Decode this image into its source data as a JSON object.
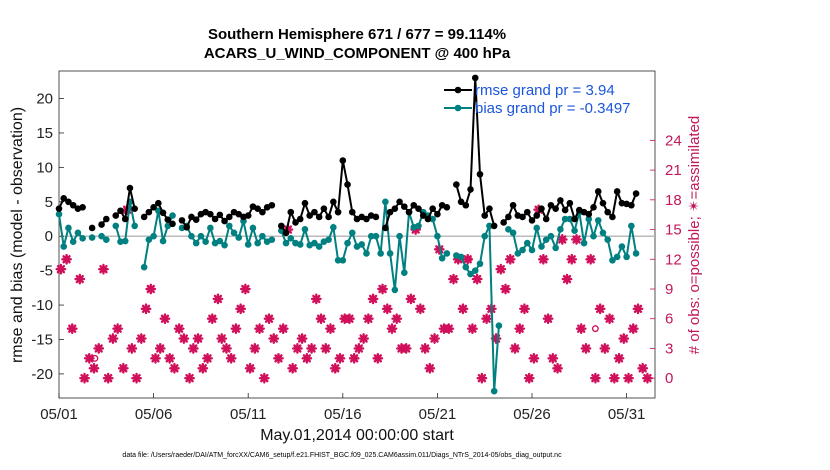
{
  "chart_data": {
    "type": "line",
    "title_line1": "Southern Hemisphere 671 / 677 = 99.114%",
    "title_line2": "ACARS_U_WIND_COMPONENT @ 400 hPa",
    "xlabel": "May.01,2014 00:00:00 start",
    "ylabel": "rmse and bias (model - observation)",
    "y2label": "# of obs: o=possible; ✴=assimilated",
    "footnote": "data file: /Users/raeder/DAI/ATM_forcXX/CAM6_setup/f.e21.FHIST_BGC.f09_025.CAM6assim.011/Diags_NTrS_2014-05/obs_diag_output.nc",
    "x_tick_labels": [
      "05/01",
      "05/06",
      "05/11",
      "05/16",
      "05/21",
      "05/26",
      "05/31"
    ],
    "x_ticks_day": [
      1,
      6,
      11,
      16,
      21,
      26,
      31
    ],
    "xlim_day": [
      1,
      32.5
    ],
    "ylim": [
      -23.5,
      24
    ],
    "y_ticks": [
      -20,
      -15,
      -10,
      -5,
      0,
      5,
      10,
      15,
      20
    ],
    "y2lim": [
      -2,
      31
    ],
    "y2_ticks": [
      0,
      3,
      6,
      9,
      12,
      15,
      18,
      21,
      24
    ],
    "grid": false,
    "legend_position": "top-right",
    "colors": {
      "rmse": "#000000",
      "bias": "#008080",
      "obs": "#d0105a",
      "zero_line": "#bbbbbb"
    },
    "series": [
      {
        "name": "rmse grand pr = 3.94",
        "day": [
          1,
          1.25,
          1.5,
          1.75,
          2,
          2.25,
          2.5,
          2.75,
          3,
          3.25,
          3.5,
          3.75,
          4,
          4.25,
          4.5,
          4.75,
          5,
          5.25,
          5.5,
          5.75,
          6,
          6.25,
          6.5,
          6.75,
          7,
          7.25,
          7.5,
          7.75,
          8,
          8.25,
          8.5,
          8.75,
          9,
          9.25,
          9.5,
          9.75,
          10,
          10.25,
          10.5,
          10.75,
          11,
          11.25,
          11.5,
          11.75,
          12,
          12.25,
          12.5,
          12.75,
          13,
          13.25,
          13.5,
          13.75,
          14,
          14.25,
          14.5,
          14.75,
          15,
          15.25,
          15.5,
          15.75,
          16,
          16.25,
          16.5,
          16.75,
          17,
          17.25,
          17.5,
          17.75,
          18,
          18.25,
          18.5,
          18.75,
          19,
          19.25,
          19.5,
          19.75,
          20,
          20.25,
          20.5,
          20.75,
          21,
          21.25,
          21.5,
          21.75,
          22,
          22.25,
          22.5,
          22.75,
          23,
          23.25,
          23.5,
          23.75,
          24,
          24.25,
          24.5,
          24.75,
          25,
          25.25,
          25.5,
          25.75,
          26,
          26.25,
          26.5,
          26.75,
          27,
          27.25,
          27.5,
          27.75,
          28,
          28.25,
          28.5,
          28.75,
          29,
          29.25,
          29.5,
          29.75,
          30,
          30.25,
          30.5,
          30.75,
          31,
          31.25,
          31.5,
          31.75,
          32,
          32.25
        ],
        "values": [
          4,
          5.5,
          5,
          4.5,
          4,
          4.2,
          null,
          1.2,
          null,
          1.7,
          2.5,
          null,
          3,
          3.7,
          2.5,
          7,
          4,
          null,
          2.8,
          3.5,
          4.2,
          4.8,
          3.4,
          2.4,
          1.8,
          null,
          2.3,
          1.3,
          2.8,
          2.4,
          3.2,
          3.5,
          3.2,
          2.5,
          3.1,
          2.2,
          2.8,
          3.5,
          3.2,
          2.8,
          3,
          4.3,
          4,
          3.5,
          4.2,
          4.5,
          null,
          1.5,
          0.5,
          3.5,
          2,
          2.5,
          4.8,
          3,
          3.5,
          2.8,
          4,
          2.8,
          5,
          3.5,
          11,
          7.5,
          3.5,
          2.5,
          2.8,
          2.5,
          3,
          2.8,
          null,
          1.2,
          3.5,
          4,
          5,
          4.3,
          3.5,
          4.5,
          4,
          3,
          2.5,
          4,
          3.2,
          4.5,
          4.2,
          null,
          7.5,
          5,
          4.5,
          6.8,
          23,
          9,
          3,
          4,
          1.5,
          null,
          2,
          2.8,
          4.5,
          3,
          2.8,
          3.5,
          2.3,
          3,
          4,
          2.5,
          4.5,
          4,
          5.2,
          3.8,
          4.8,
          2.5,
          3.8,
          3.5,
          3.2,
          4.2,
          6.5,
          4.8,
          3.5,
          2.8,
          6.5,
          4.8,
          4.7,
          4.5,
          6.2
        ]
      },
      {
        "name": "bias grand pr = -0.3497",
        "day": [
          1,
          1.25,
          1.5,
          1.75,
          2,
          2.25,
          2.5,
          2.75,
          3,
          3.25,
          3.5,
          3.75,
          4,
          4.25,
          4.5,
          4.75,
          5,
          5.25,
          5.5,
          5.75,
          6,
          6.25,
          6.5,
          6.75,
          7,
          7.25,
          7.5,
          7.75,
          8,
          8.25,
          8.5,
          8.75,
          9,
          9.25,
          9.5,
          9.75,
          10,
          10.25,
          10.5,
          10.75,
          11,
          11.25,
          11.5,
          11.75,
          12,
          12.25,
          12.5,
          12.75,
          13,
          13.25,
          13.5,
          13.75,
          14,
          14.25,
          14.5,
          14.75,
          15,
          15.25,
          15.5,
          15.75,
          16,
          16.25,
          16.5,
          16.75,
          17,
          17.25,
          17.5,
          17.75,
          18,
          18.25,
          18.5,
          18.75,
          19,
          19.25,
          19.5,
          19.75,
          20,
          20.25,
          20.5,
          20.75,
          21,
          21.25,
          21.5,
          21.75,
          22,
          22.25,
          22.5,
          22.75,
          23,
          23.25,
          23.5,
          23.75,
          24,
          24.25,
          24.5,
          24.75,
          25,
          25.25,
          25.5,
          25.75,
          26,
          26.25,
          26.5,
          26.75,
          27,
          27.25,
          27.5,
          27.75,
          28,
          28.25,
          28.5,
          28.75,
          29,
          29.25,
          29.5,
          29.75,
          30,
          30.25,
          30.5,
          30.75,
          31,
          31.25,
          31.5,
          31.75,
          32,
          32.25
        ],
        "values": [
          3.2,
          -1.5,
          1.2,
          -0.8,
          0.5,
          -0.3,
          null,
          -0.2,
          null,
          0,
          -0.5,
          null,
          1.5,
          -0.8,
          -0.7,
          5,
          1.5,
          null,
          -4.5,
          -0.5,
          0,
          3.7,
          -0.7,
          1.5,
          3,
          null,
          1.2,
          1.5,
          0,
          -1,
          0,
          -0.8,
          1.2,
          -1,
          -0.7,
          -1.3,
          1.5,
          0.5,
          -0.2,
          2.2,
          -1.2,
          1.2,
          -1,
          0,
          -0.8,
          -0.5,
          null,
          0.8,
          -1,
          -0.3,
          -1,
          -1.2,
          1,
          -1.3,
          -1,
          -1.5,
          -0.8,
          -0.5,
          1.3,
          -3.5,
          -3.5,
          -1,
          0.5,
          -1.5,
          -1.2,
          -2.5,
          0,
          0,
          -2.5,
          5,
          -2.5,
          -7.8,
          0,
          -5.3,
          3.5,
          1.3,
          1.5,
          3.5,
          3,
          2.5,
          0,
          -3.2,
          -2.5,
          null,
          -2.8,
          -3,
          -4.5,
          -5.5,
          -5,
          -4,
          0,
          1.5,
          -22.5,
          -13,
          null,
          1,
          0.5,
          -2.5,
          -2,
          -1,
          -2,
          1.2,
          -1.5,
          -0.5,
          0,
          -1.7,
          1,
          2.5,
          2.5,
          0.8,
          3.5,
          -1,
          2.5,
          0,
          2.3,
          0.5,
          -0.5,
          -3.5,
          -3,
          -1.5,
          -3,
          1.5,
          -2.5
        ]
      }
    ],
    "obs_assimilated": {
      "day": [
        1.1,
        1.4,
        1.7,
        2.1,
        2.35,
        2.6,
        2.85,
        3.1,
        3.35,
        3.6,
        3.85,
        4.1,
        4.4,
        4.6,
        4.85,
        5.1,
        5.35,
        5.6,
        5.85,
        6.1,
        6.35,
        6.6,
        6.85,
        7.1,
        7.35,
        7.6,
        7.9,
        8.1,
        8.35,
        8.6,
        8.85,
        9.1,
        9.4,
        9.6,
        9.85,
        10.1,
        10.35,
        10.6,
        10.85,
        11.1,
        11.35,
        11.6,
        11.85,
        12.1,
        12.35,
        12.6,
        12.85,
        13.1,
        13.35,
        13.6,
        13.85,
        14.1,
        14.35,
        14.6,
        14.85,
        15.1,
        15.35,
        15.6,
        15.85,
        16.1,
        16.35,
        16.6,
        16.85,
        17.1,
        17.35,
        17.6,
        17.85,
        18.1,
        18.35,
        18.6,
        18.85,
        19.1,
        19.35,
        19.6,
        19.85,
        20.1,
        20.35,
        20.6,
        20.85,
        21.1,
        21.35,
        21.6,
        21.85,
        22.1,
        22.35,
        22.6,
        22.85,
        23.1,
        23.35,
        23.6,
        23.85,
        24.1,
        24.35,
        24.6,
        24.85,
        25.1,
        25.35,
        25.6,
        25.85,
        26.1,
        26.35,
        26.6,
        26.85,
        27.1,
        27.35,
        27.6,
        27.85,
        28.1,
        28.35,
        28.6,
        28.85,
        29.1,
        29.35,
        29.6,
        29.85,
        30.1,
        30.35,
        30.6,
        30.85,
        31.1,
        31.35,
        31.6,
        31.85,
        32.1
      ],
      "values": [
        11,
        12,
        5,
        10,
        0,
        2,
        1,
        3,
        11,
        0,
        4,
        5,
        1,
        17,
        3,
        0,
        4,
        7,
        9,
        2,
        3,
        6,
        2,
        1,
        5,
        4,
        0,
        3,
        4,
        1,
        2,
        6,
        8,
        4,
        3,
        2,
        5,
        7,
        9,
        1,
        3,
        5,
        0,
        6,
        4,
        2,
        5,
        15,
        1,
        3,
        4,
        2,
        3,
        8,
        6,
        3,
        5,
        1,
        2,
        6,
        6,
        2,
        3,
        4,
        6,
        8,
        2,
        9,
        7,
        5,
        6,
        3,
        3,
        8,
        15,
        7,
        3,
        1,
        4,
        13,
        5,
        5,
        10,
        12,
        7,
        12,
        5,
        10,
        0,
        6,
        7,
        4,
        11,
        9,
        12,
        3,
        5,
        7,
        0,
        2,
        17,
        12,
        6,
        2,
        1,
        14,
        10,
        12,
        14,
        5,
        3,
        12,
        0,
        7,
        3,
        6,
        0,
        2,
        4,
        0,
        5,
        7,
        1,
        0
      ]
    },
    "obs_possible": {
      "day": [
        1.4,
        2.9,
        22.65,
        29.35
      ],
      "values": [
        12,
        2,
        12,
        5
      ]
    }
  }
}
